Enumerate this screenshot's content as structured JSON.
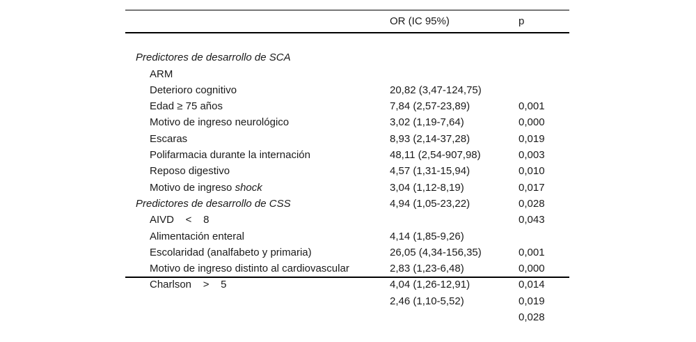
{
  "table": {
    "columns": {
      "or_header": "OR (IC 95%)",
      "p_header": "p"
    },
    "rows": [
      {
        "type": "section",
        "label": "Predictores de desarrollo de SCA"
      },
      {
        "type": "item",
        "label": "ARM",
        "or": "20,82 (3,47-124,75)",
        "p": "0,001"
      },
      {
        "type": "item",
        "label": "Deterioro cognitivo",
        "or": "7,84 (2,57-23,89)",
        "p": "0,000"
      },
      {
        "type": "item",
        "label": "Edad ≥ 75 años",
        "or": "3,02 (1,19-7,64)",
        "p": "0,019"
      },
      {
        "type": "item",
        "label": "Motivo de ingreso neurológico",
        "or": "8,93 (2,14-37,28)",
        "p": "0,003"
      },
      {
        "type": "item",
        "label": "Escaras",
        "or": "48,11 (2,54-907,98)",
        "p": "0,010"
      },
      {
        "type": "item",
        "label": "Polifarmacia durante la internación",
        "or": "4,57 (1,31-15,94)",
        "p": "0,017"
      },
      {
        "type": "item",
        "label": "Reposo digestivo",
        "or": "3,04 (1,12-8,19)",
        "p": "0,028"
      },
      {
        "type": "item",
        "label": "Motivo de ingreso ",
        "label_italic": "shock",
        "or": "4,94 (1,05-23,22)",
        "p": "0,043"
      },
      {
        "type": "section",
        "label": "Predictores de desarrollo de CSS"
      },
      {
        "type": "item",
        "label": "AIVD    <    8",
        "or": "4,14 (1,85-9,26)",
        "p": "0,001"
      },
      {
        "type": "item",
        "label": "Alimentación enteral",
        "or": "26,05 (4,34-156,35)",
        "p": "0,000"
      },
      {
        "type": "item",
        "label": "Escolaridad (analfabeto y primaria)",
        "or": "2,83 (1,23-6,48)",
        "p": "0,014"
      },
      {
        "type": "item",
        "label": "Motivo de ingreso distinto al cardiovascular",
        "or": "4,04 (1,26-12,91)",
        "p": "0,019"
      },
      {
        "type": "item",
        "label": "Charlson    >    5",
        "or": "2,46 (1,10-5,52)",
        "p": "0,028"
      }
    ]
  }
}
